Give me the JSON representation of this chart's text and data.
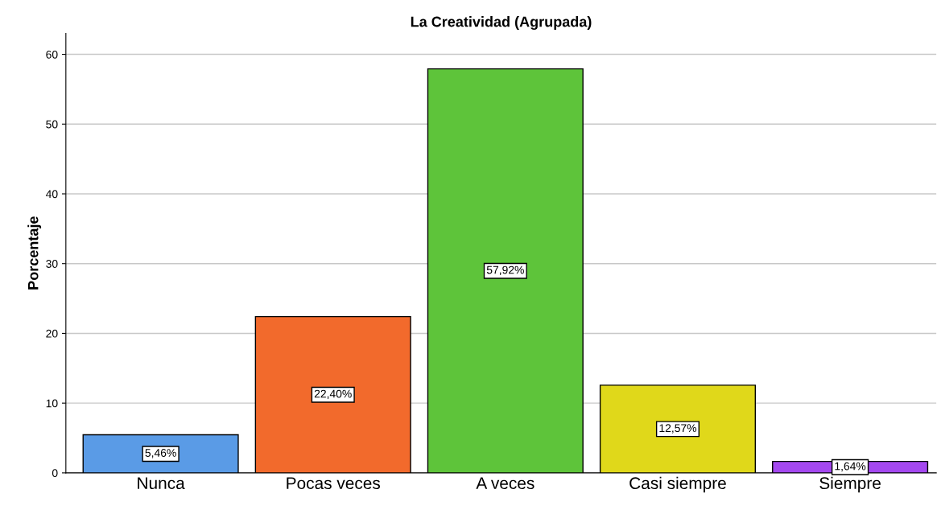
{
  "chart_data": {
    "type": "bar",
    "title": "La Creatividad (Agrupada)",
    "ylabel": "Porcentaje",
    "categories": [
      "Nunca",
      "Pocas veces",
      "A veces",
      "Casi siempre",
      "Siempre"
    ],
    "values": [
      5.46,
      22.4,
      57.92,
      12.57,
      1.64
    ],
    "colors": [
      "#5a9be6",
      "#f26a2c",
      "#5ec43a",
      "#e0d81a",
      "#a448f0"
    ],
    "value_labels": [
      "5,46%",
      "22,40%",
      "57,92%",
      "12,57%",
      "1,64%"
    ],
    "ylim": [
      0,
      63
    ],
    "yticks": [
      0,
      10,
      20,
      30,
      40,
      50,
      60
    ],
    "grid": "y"
  }
}
